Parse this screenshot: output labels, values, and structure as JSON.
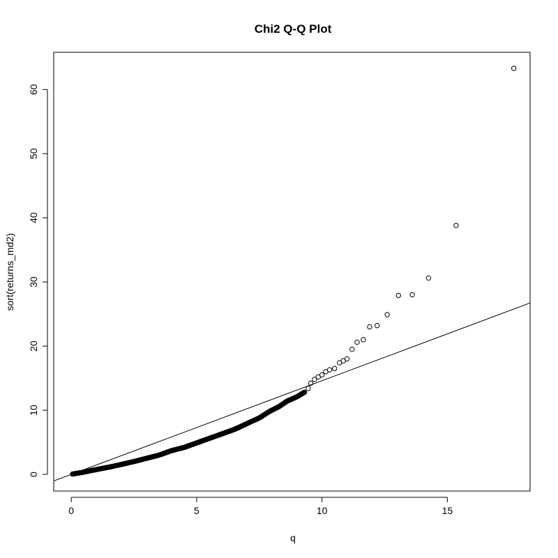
{
  "chart_data": {
    "type": "scatter",
    "title": "Chi2 Q-Q Plot",
    "xlabel": "q",
    "ylabel": "sort(returns_md2)",
    "xlim": [
      -0.7,
      18.3
    ],
    "ylim": [
      -2.6,
      65.8
    ],
    "x_ticks": [
      0,
      5,
      10,
      15
    ],
    "y_ticks": [
      0,
      10,
      20,
      30,
      40,
      50,
      60
    ],
    "grid": false,
    "legend": "none",
    "reference_line": {
      "intercept": 0,
      "slope": 1.46
    },
    "dense_points": [
      [
        0.05,
        0.05
      ],
      [
        0.2,
        0.15
      ],
      [
        0.5,
        0.35
      ],
      [
        0.8,
        0.6
      ],
      [
        1.2,
        0.9
      ],
      [
        1.6,
        1.2
      ],
      [
        2.0,
        1.55
      ],
      [
        2.5,
        2.0
      ],
      [
        3.0,
        2.5
      ],
      [
        3.5,
        3.0
      ],
      [
        4.0,
        3.7
      ],
      [
        4.5,
        4.2
      ],
      [
        5.0,
        4.9
      ],
      [
        5.5,
        5.6
      ],
      [
        6.0,
        6.3
      ],
      [
        6.5,
        7.0
      ],
      [
        7.0,
        7.9
      ],
      [
        7.5,
        8.8
      ],
      [
        7.9,
        9.8
      ],
      [
        8.3,
        10.6
      ],
      [
        8.6,
        11.4
      ],
      [
        9.0,
        12.1
      ],
      [
        9.3,
        12.8
      ]
    ],
    "sparse_points": [
      [
        9.45,
        13.4
      ],
      [
        9.55,
        14.2
      ],
      [
        9.7,
        14.8
      ],
      [
        9.85,
        15.2
      ],
      [
        10.0,
        15.5
      ],
      [
        10.15,
        16.0
      ],
      [
        10.3,
        16.3
      ],
      [
        10.5,
        16.5
      ],
      [
        10.7,
        17.4
      ],
      [
        10.85,
        17.7
      ],
      [
        11.0,
        18.0
      ],
      [
        11.2,
        19.5
      ],
      [
        11.4,
        20.6
      ],
      [
        11.65,
        21.0
      ],
      [
        11.9,
        23.0
      ],
      [
        12.2,
        23.2
      ],
      [
        12.6,
        24.9
      ],
      [
        13.05,
        27.9
      ],
      [
        13.6,
        28.0
      ],
      [
        14.25,
        30.6
      ],
      [
        15.35,
        38.8
      ],
      [
        17.65,
        63.3
      ]
    ],
    "colors": {
      "marker": "#000000",
      "line": "#000000",
      "frame": "#000000"
    }
  }
}
